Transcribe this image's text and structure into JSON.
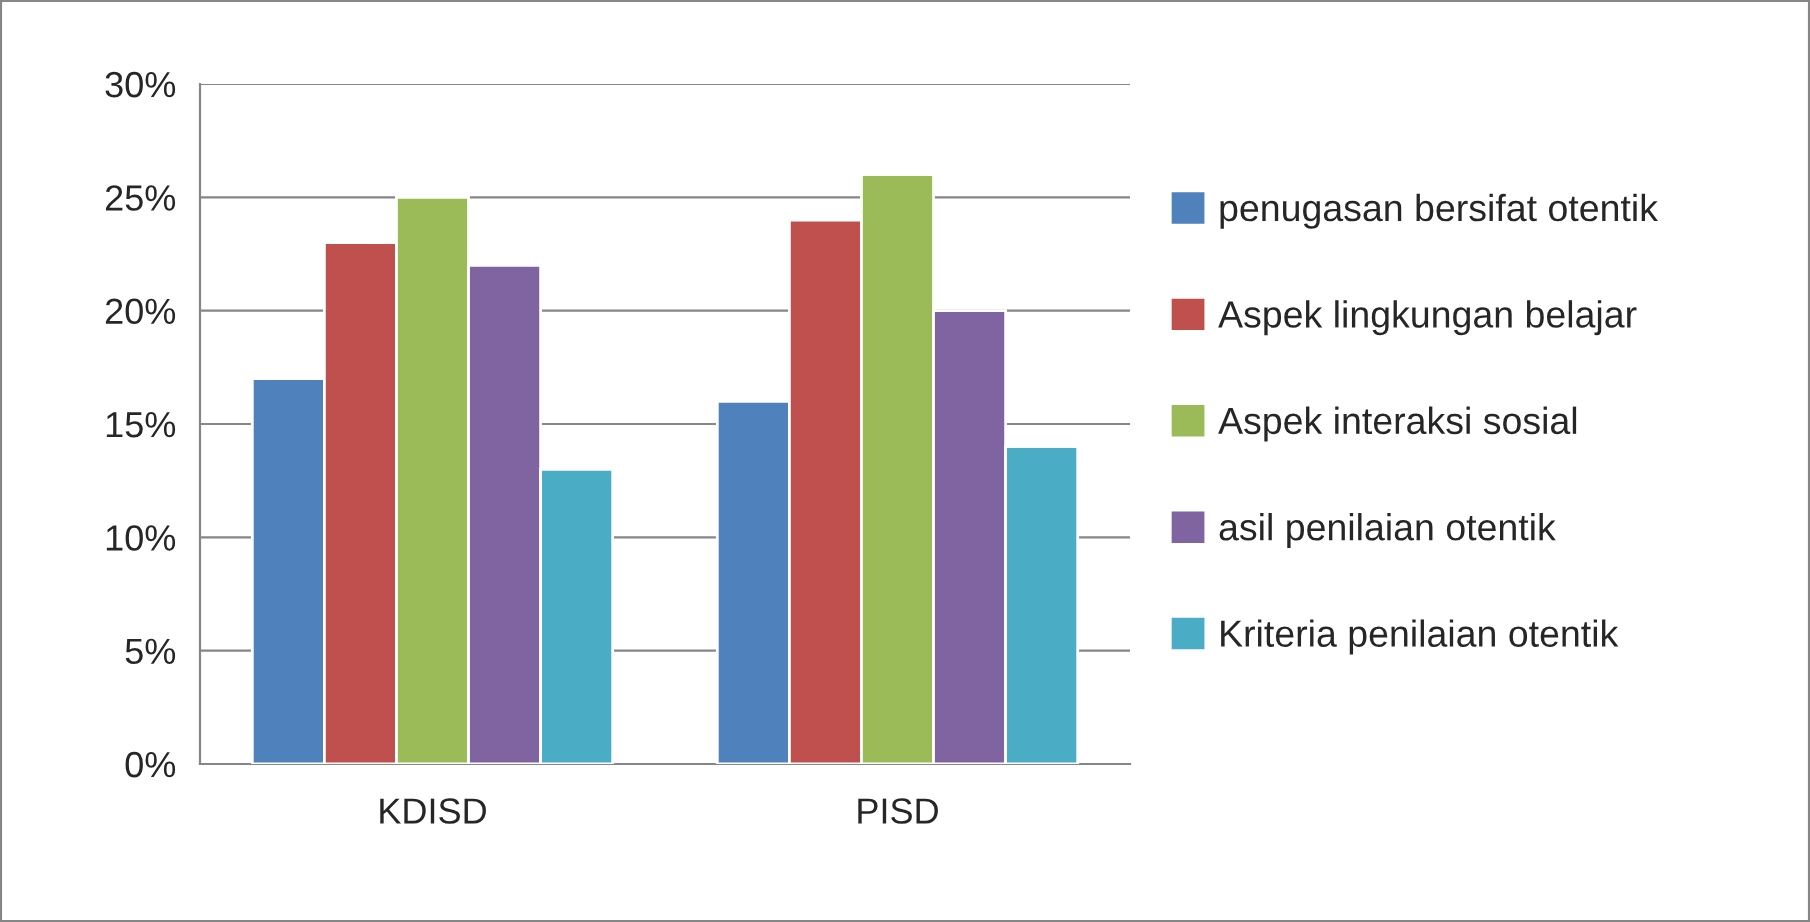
{
  "chart_data": {
    "type": "bar",
    "categories": [
      "KDISD",
      "PISD"
    ],
    "series": [
      {
        "name": "penugasan bersifat otentik",
        "color": "#4f81bd",
        "values": [
          17,
          16
        ]
      },
      {
        "name": "Aspek lingkungan belajar",
        "color": "#c0504d",
        "values": [
          23,
          24
        ]
      },
      {
        "name": "Aspek interaksi sosial",
        "color": "#9bbb59",
        "values": [
          25,
          26
        ]
      },
      {
        "name": "asil penilaian otentik",
        "color": "#8064a2",
        "values": [
          22,
          20
        ]
      },
      {
        "name": "Kriteria penilaian otentik",
        "color": "#4bacc6",
        "values": [
          13,
          14
        ]
      }
    ],
    "ylim": [
      0,
      30
    ],
    "yticks": [
      {
        "value": 0,
        "label": "0%"
      },
      {
        "value": 5,
        "label": "5%"
      },
      {
        "value": 10,
        "label": "10%"
      },
      {
        "value": 15,
        "label": "15%"
      },
      {
        "value": 20,
        "label": "20%"
      },
      {
        "value": 25,
        "label": "25%"
      },
      {
        "value": 30,
        "label": "30%"
      }
    ],
    "grid": "y",
    "legend": "right"
  }
}
